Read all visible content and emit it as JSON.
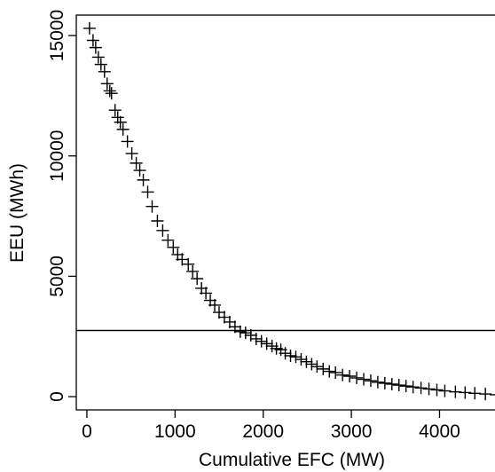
{
  "chart_data": {
    "type": "scatter",
    "title": "",
    "xlabel": "Cumulative EFC (MW)",
    "ylabel": "EEU (MWh)",
    "xlim": [
      -120,
      4770
    ],
    "ylim": [
      -550,
      15850
    ],
    "xticks": [
      0,
      1000,
      2000,
      3000,
      4000
    ],
    "xtick_labels": [
      "0",
      "1000",
      "2000",
      "3000",
      "4000"
    ],
    "yticks": [
      0,
      5000,
      10000,
      15000
    ],
    "ytick_labels": [
      "0",
      "5000",
      "10000",
      "15000"
    ],
    "grid": false,
    "legend": "none",
    "marker": "plus",
    "hline": {
      "y": 2750
    },
    "points": {
      "x": [
        30,
        70,
        100,
        130,
        160,
        200,
        230,
        260,
        280,
        320,
        350,
        380,
        410,
        460,
        510,
        560,
        600,
        640,
        690,
        740,
        800,
        860,
        920,
        980,
        1030,
        1080,
        1150,
        1200,
        1250,
        1300,
        1350,
        1400,
        1450,
        1500,
        1560,
        1620,
        1680,
        1740,
        1800,
        1860,
        1920,
        1980,
        2040,
        2100,
        2150,
        2200,
        2250,
        2310,
        2370,
        2430,
        2490,
        2550,
        2610,
        2680,
        2750,
        2820,
        2900,
        2980,
        3060,
        3140,
        3220,
        3300,
        3380,
        3460,
        3540,
        3620,
        3700,
        3790,
        3880,
        3970,
        4060,
        4180,
        4290,
        4400,
        4520,
        4640
      ],
      "y": [
        15300,
        14800,
        14500,
        14100,
        13800,
        13500,
        13000,
        12700,
        12600,
        11900,
        11600,
        11400,
        11100,
        10600,
        10100,
        9700,
        9400,
        9000,
        8500,
        7900,
        7300,
        6900,
        6500,
        6200,
        5900,
        5700,
        5500,
        5200,
        4900,
        4500,
        4300,
        4000,
        3800,
        3500,
        3300,
        3100,
        2900,
        2700,
        2650,
        2550,
        2400,
        2300,
        2200,
        2100,
        2000,
        1950,
        1800,
        1700,
        1650,
        1550,
        1450,
        1350,
        1250,
        1150,
        1050,
        1000,
        900,
        850,
        780,
        720,
        660,
        600,
        560,
        520,
        480,
        440,
        400,
        360,
        320,
        280,
        240,
        200,
        170,
        140,
        110,
        80
      ]
    }
  }
}
